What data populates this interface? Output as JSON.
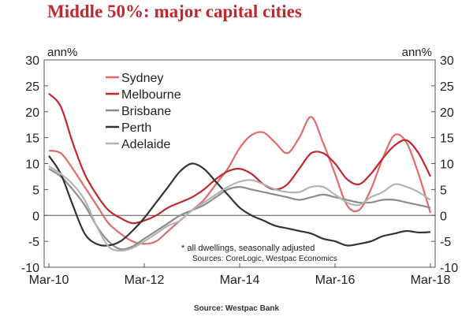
{
  "chart_data": {
    "type": "line",
    "title": "Middle 50%: major capital cities",
    "footer": "Source: Westpac Bank",
    "ylabel_left": "ann%",
    "ylabel_right": "ann%",
    "ylim": [
      -10,
      30
    ],
    "yticks": [
      -10,
      -5,
      0,
      5,
      10,
      15,
      20,
      25,
      30
    ],
    "xlim": [
      "2010-03",
      "2018-03"
    ],
    "xticks": [
      "Mar-10",
      "Mar-12",
      "Mar-14",
      "Mar-16",
      "Mar-18"
    ],
    "grid": false,
    "legend_position": "top-left",
    "annotation_1": "* all dwellings, seasonally adjusted",
    "annotation_2": "Sources: CoreLogic, Westpac Economics",
    "colors": {
      "Sydney": "#e06b6b",
      "Melbourne": "#c0282e",
      "Brisbane": "#8c8c8c",
      "Perth": "#333333",
      "Adelaide": "#b3b3b3",
      "title": "#c0282e"
    },
    "series": [
      {
        "name": "Sydney",
        "x": [
          "2010-03",
          "2010-06",
          "2010-09",
          "2010-12",
          "2011-03",
          "2011-06",
          "2011-09",
          "2011-12",
          "2012-03",
          "2012-06",
          "2012-09",
          "2012-12",
          "2013-03",
          "2013-06",
          "2013-09",
          "2013-12",
          "2014-03",
          "2014-06",
          "2014-09",
          "2014-12",
          "2015-03",
          "2015-06",
          "2015-09",
          "2015-12",
          "2016-03",
          "2016-06",
          "2016-09",
          "2016-12",
          "2017-03",
          "2017-06",
          "2017-09",
          "2017-12",
          "2018-03"
        ],
        "values": [
          12.5,
          12,
          9,
          5.5,
          2,
          -1.5,
          -3.5,
          -5,
          -5.5,
          -5,
          -3,
          -1,
          1,
          3,
          6,
          9,
          13,
          15.5,
          16,
          14,
          12,
          15,
          19,
          14,
          8,
          2,
          1,
          5,
          11,
          15.5,
          14,
          8,
          0.5
        ]
      },
      {
        "name": "Melbourne",
        "x": [
          "2010-03",
          "2010-06",
          "2010-09",
          "2010-12",
          "2011-03",
          "2011-06",
          "2011-09",
          "2011-12",
          "2012-03",
          "2012-06",
          "2012-09",
          "2012-12",
          "2013-03",
          "2013-06",
          "2013-09",
          "2013-12",
          "2014-03",
          "2014-06",
          "2014-09",
          "2014-12",
          "2015-03",
          "2015-06",
          "2015-09",
          "2015-12",
          "2016-03",
          "2016-06",
          "2016-09",
          "2016-12",
          "2017-03",
          "2017-06",
          "2017-09",
          "2017-12",
          "2018-03"
        ],
        "values": [
          23.5,
          21,
          14,
          8,
          4,
          1,
          -0.5,
          -1.5,
          -1,
          0,
          1.5,
          2.5,
          3.5,
          5,
          7,
          8.5,
          9,
          8,
          6,
          5,
          6,
          9,
          12,
          12,
          10,
          7,
          6,
          8,
          11,
          13.5,
          14.5,
          12,
          7.5
        ]
      },
      {
        "name": "Brisbane",
        "x": [
          "2010-03",
          "2010-06",
          "2010-09",
          "2010-12",
          "2011-03",
          "2011-06",
          "2011-09",
          "2011-12",
          "2012-03",
          "2012-06",
          "2012-09",
          "2012-12",
          "2013-03",
          "2013-06",
          "2013-09",
          "2013-12",
          "2014-03",
          "2014-06",
          "2014-09",
          "2014-12",
          "2015-03",
          "2015-06",
          "2015-09",
          "2015-12",
          "2016-03",
          "2016-06",
          "2016-09",
          "2016-12",
          "2017-03",
          "2017-06",
          "2017-09",
          "2017-12",
          "2018-03"
        ],
        "values": [
          9,
          7.5,
          5,
          2,
          -2,
          -5,
          -6.5,
          -6,
          -4.5,
          -3,
          -1.5,
          0,
          1,
          2,
          3.5,
          5,
          5.5,
          5,
          4.5,
          4,
          3.5,
          3,
          3.5,
          4,
          3.5,
          3,
          2.5,
          2.5,
          3,
          3,
          2.5,
          2,
          1.5
        ]
      },
      {
        "name": "Perth",
        "x": [
          "2010-03",
          "2010-06",
          "2010-09",
          "2010-12",
          "2011-03",
          "2011-06",
          "2011-09",
          "2011-12",
          "2012-03",
          "2012-06",
          "2012-09",
          "2012-12",
          "2013-03",
          "2013-06",
          "2013-09",
          "2013-12",
          "2014-03",
          "2014-06",
          "2014-09",
          "2014-12",
          "2015-03",
          "2015-06",
          "2015-09",
          "2015-12",
          "2016-03",
          "2016-06",
          "2016-09",
          "2016-12",
          "2017-03",
          "2017-06",
          "2017-09",
          "2017-12",
          "2018-03"
        ],
        "values": [
          11.5,
          8,
          2,
          -3.5,
          -5.5,
          -5.8,
          -5,
          -3,
          -0.5,
          2.5,
          5.5,
          8.5,
          10,
          9,
          6.5,
          4,
          1.5,
          0,
          -1,
          -2,
          -2.5,
          -3,
          -3.5,
          -4.5,
          -5,
          -5.8,
          -5.5,
          -5,
          -4,
          -3.5,
          -3,
          -3.3,
          -3.2
        ]
      },
      {
        "name": "Adelaide",
        "x": [
          "2010-03",
          "2010-06",
          "2010-09",
          "2010-12",
          "2011-03",
          "2011-06",
          "2011-09",
          "2011-12",
          "2012-03",
          "2012-06",
          "2012-09",
          "2012-12",
          "2013-03",
          "2013-06",
          "2013-09",
          "2013-12",
          "2014-03",
          "2014-06",
          "2014-09",
          "2014-12",
          "2015-03",
          "2015-06",
          "2015-09",
          "2015-12",
          "2016-03",
          "2016-06",
          "2016-09",
          "2016-12",
          "2017-03",
          "2017-06",
          "2017-09",
          "2017-12",
          "2018-03"
        ],
        "values": [
          9.5,
          8,
          6,
          3,
          -2,
          -6,
          -6.8,
          -6.3,
          -5,
          -3.5,
          -2,
          -1,
          1,
          2.5,
          4,
          5.5,
          6.5,
          6.8,
          6,
          5,
          4.5,
          4.5,
          5.5,
          5.5,
          4,
          2.5,
          2,
          3.5,
          4.5,
          6,
          5.5,
          4.5,
          3
        ]
      }
    ]
  }
}
